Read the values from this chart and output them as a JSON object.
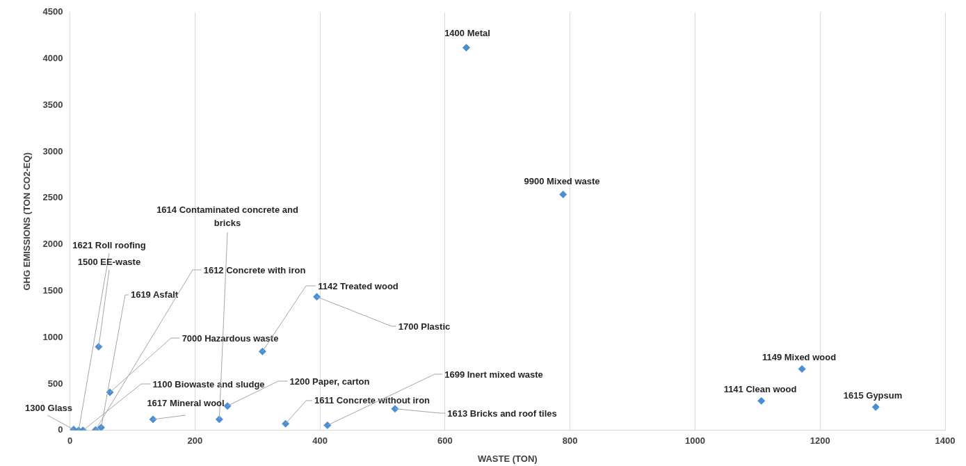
{
  "chart_data": {
    "type": "scatter",
    "xlabel": "WASTE (TON)",
    "ylabel": "GHG EMISSIONS (TON CO2-EQ)",
    "xlim": [
      0,
      1400
    ],
    "xticks": [
      0,
      200,
      400,
      600,
      800,
      1000,
      1200,
      1400
    ],
    "ylim": [
      0,
      4500
    ],
    "yticks": [
      0,
      500,
      1000,
      1500,
      2000,
      2500,
      3000,
      3500,
      4000,
      4500
    ],
    "grid": "x",
    "marker": "diamond",
    "legend": false,
    "series": [
      {
        "color": "#4a8fd6",
        "x": [
          6,
          14,
          46,
          50,
          41,
          64,
          21,
          239,
          133,
          252,
          308,
          395,
          345,
          412,
          520,
          634,
          789,
          1171,
          1106,
          1289
        ],
        "values": [
          10,
          0,
          900,
          30,
          5,
          410,
          0,
          119,
          119,
          263,
          850,
          1438,
          72,
          55,
          233,
          4120,
          2540,
          661,
          318,
          251
        ]
      }
    ],
    "annotations": [
      {
        "text": "1300 Glass",
        "x": 6,
        "y": 10
      },
      {
        "text": "1621 Roll roofing",
        "x": 14,
        "y": 0
      },
      {
        "text": "1500 EE-waste",
        "x": 46,
        "y": 900
      },
      {
        "text": "1619 Asfalt",
        "x": 50,
        "y": 30
      },
      {
        "text": "1612 Concrete with iron",
        "x": 41,
        "y": 5
      },
      {
        "text": "7000 Hazardous waste",
        "x": 64,
        "y": 410
      },
      {
        "text": "1100 Biowaste and sludge",
        "x": 21,
        "y": 0
      },
      {
        "text": "1614 Contaminated concrete and bricks",
        "x": 239,
        "y": 119
      },
      {
        "text": "1617 Mineral wool",
        "x": 133,
        "y": 119
      },
      {
        "text": "1200 Paper, carton",
        "x": 252,
        "y": 263
      },
      {
        "text": "1142 Treated wood",
        "x": 308,
        "y": 850
      },
      {
        "text": "1700 Plastic",
        "x": 395,
        "y": 1438
      },
      {
        "text": "1611 Concrete without iron",
        "x": 345,
        "y": 72
      },
      {
        "text": "1699 Inert mixed waste",
        "x": 412,
        "y": 55
      },
      {
        "text": "1613 Bricks and roof tiles",
        "x": 520,
        "y": 233
      },
      {
        "text": "1400 Metal",
        "x": 634,
        "y": 4120
      },
      {
        "text": "9900 Mixed waste",
        "x": 789,
        "y": 2540
      },
      {
        "text": "1149 Mixed wood",
        "x": 1171,
        "y": 661
      },
      {
        "text": "1141 Clean wood",
        "x": 1106,
        "y": 318
      },
      {
        "text": "1615 Gypsum",
        "x": 1289,
        "y": 251
      }
    ]
  }
}
